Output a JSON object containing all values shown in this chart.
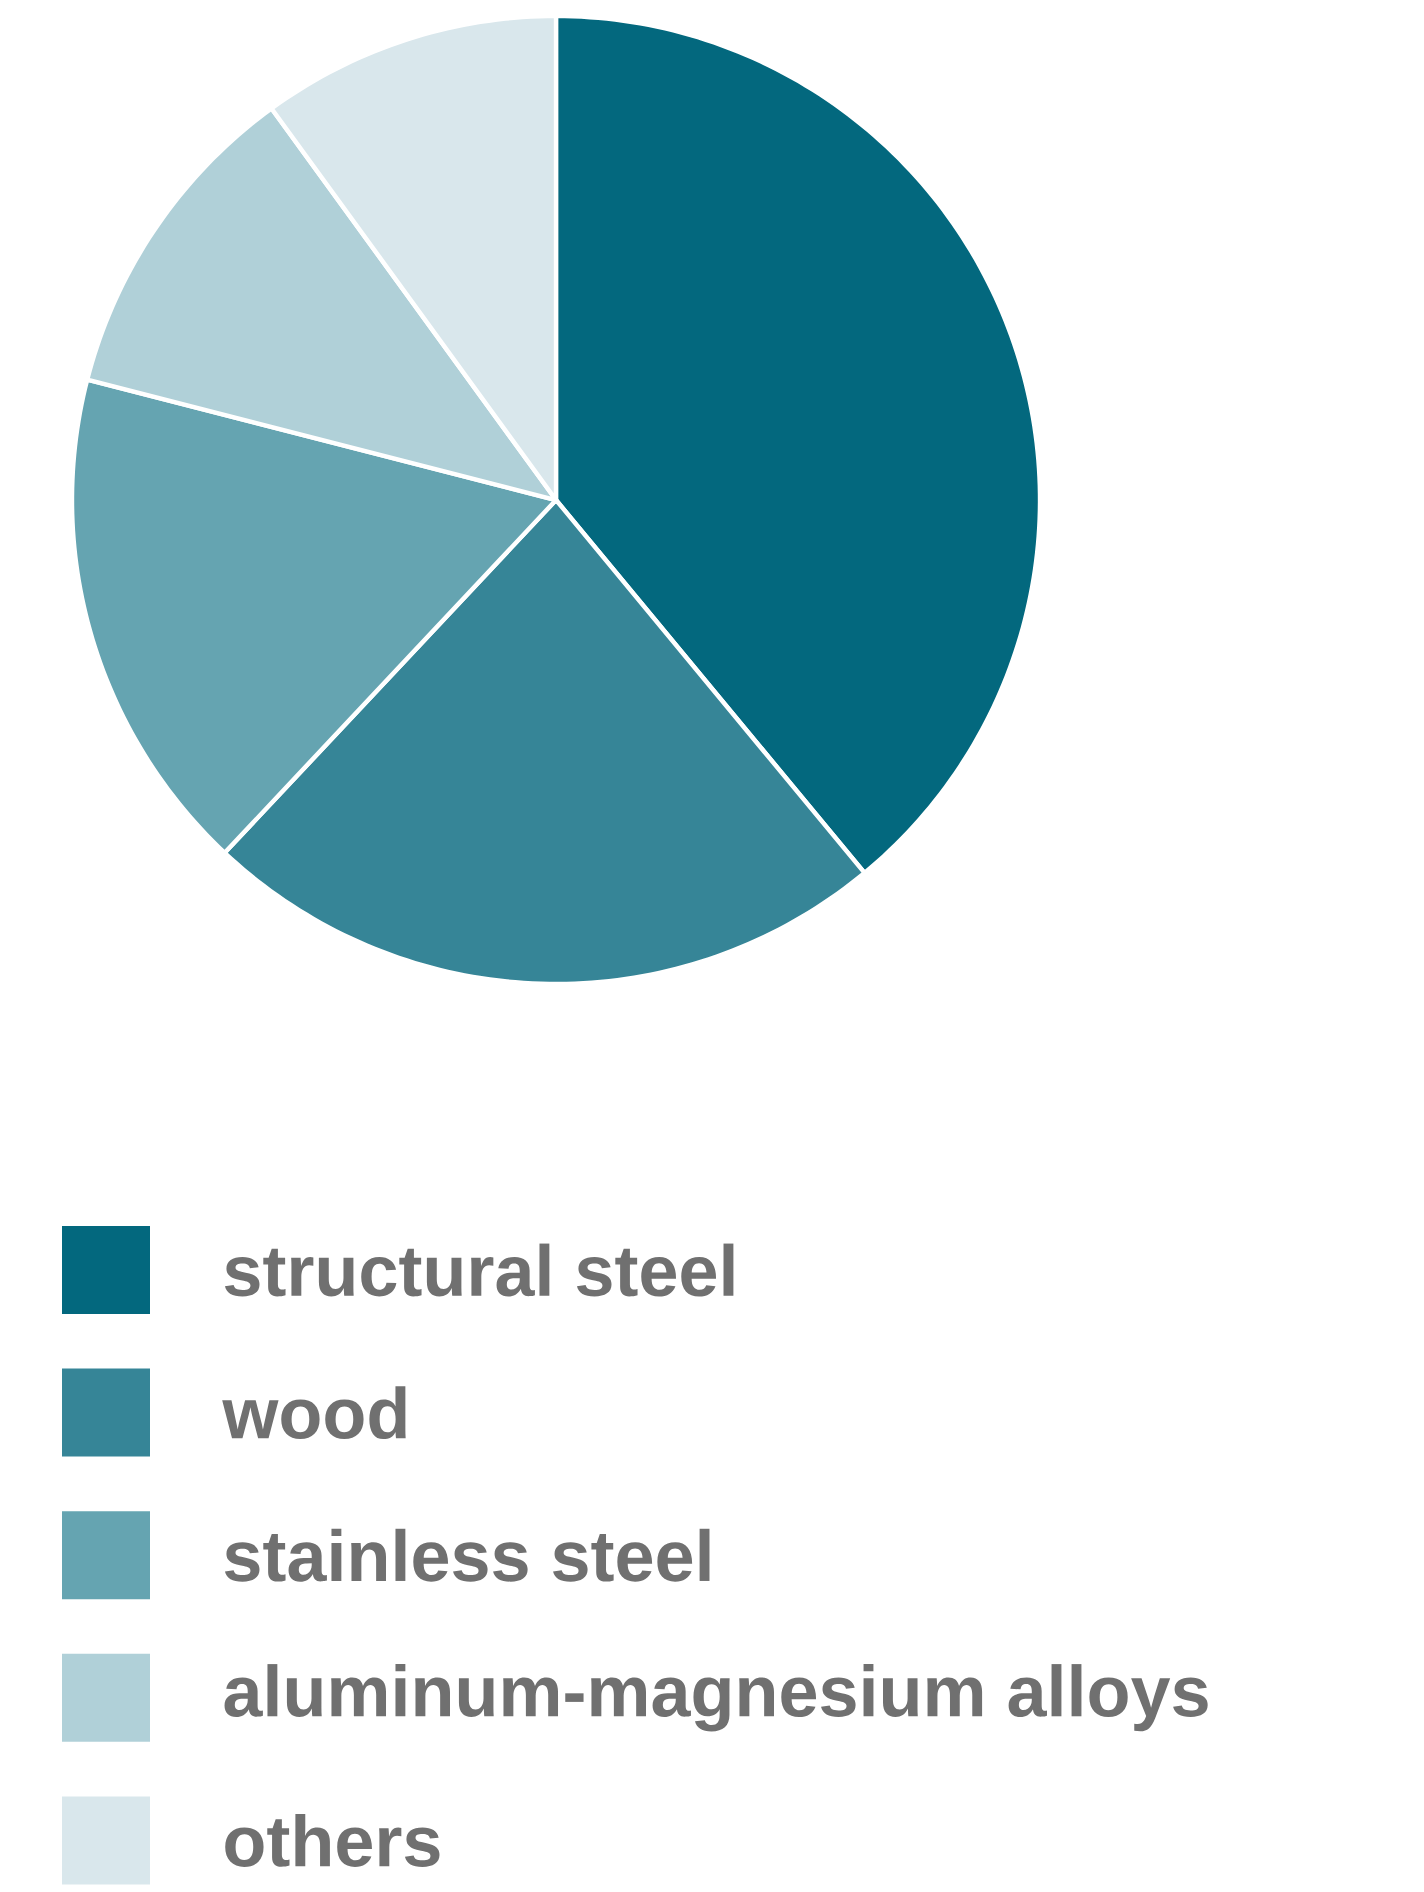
{
  "chart_data": {
    "type": "pie",
    "categories": [
      "structural steel",
      "wood",
      "stainless steel",
      "aluminum-magnesium alloys",
      "others"
    ],
    "values": [
      39,
      23,
      17,
      11,
      10
    ],
    "colors": [
      "#03687e",
      "#368597",
      "#65a4b1",
      "#b0d0d8",
      "#d9e7ec"
    ],
    "legend": "bottom"
  }
}
